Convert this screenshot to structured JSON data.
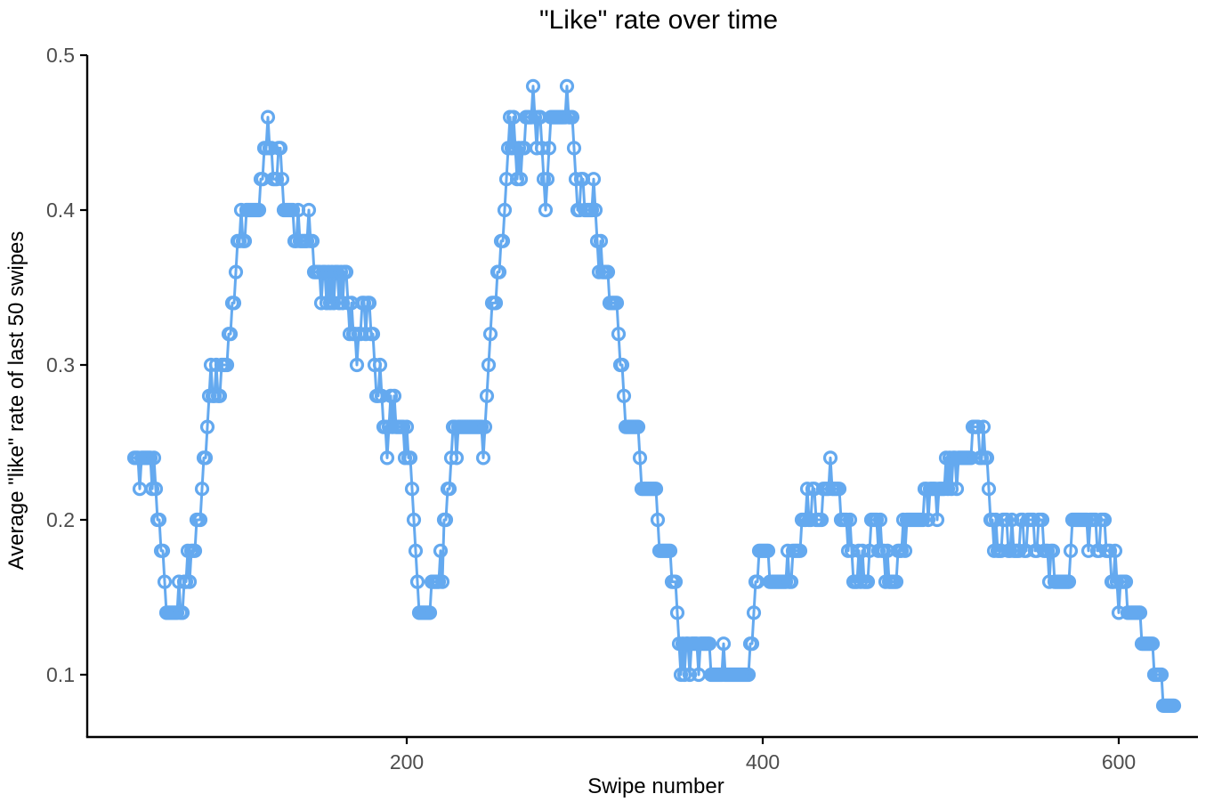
{
  "chart_data": {
    "type": "line",
    "title": "\"Like\" rate over time",
    "xlabel": "Swipe number",
    "ylabel": "Average \"like\" rate of last 50 swipes",
    "legend": "none",
    "grid": false,
    "marker": "open-circle",
    "xlim": [
      20,
      644
    ],
    "ylim": [
      0.06,
      0.5
    ],
    "x_ticks": [
      200,
      400,
      600
    ],
    "y_ticks": [
      0.1,
      0.2,
      0.3,
      0.4,
      0.5
    ],
    "colors": {
      "series": "#64A9EF",
      "axis": "#000000",
      "tick_label": "#4D4D4D",
      "background": "#FFFFFF"
    },
    "x_start": 47,
    "x_step": 1,
    "values": [
      0.24,
      0.24,
      0.24,
      0.22,
      0.24,
      0.24,
      0.24,
      0.24,
      0.24,
      0.24,
      0.22,
      0.24,
      0.22,
      0.2,
      0.2,
      0.18,
      0.18,
      0.16,
      0.14,
      0.14,
      0.14,
      0.14,
      0.14,
      0.14,
      0.14,
      0.16,
      0.14,
      0.14,
      0.16,
      0.16,
      0.18,
      0.16,
      0.18,
      0.18,
      0.18,
      0.2,
      0.2,
      0.2,
      0.22,
      0.24,
      0.24,
      0.26,
      0.28,
      0.3,
      0.28,
      0.28,
      0.3,
      0.28,
      0.28,
      0.3,
      0.3,
      0.3,
      0.3,
      0.32,
      0.32,
      0.34,
      0.34,
      0.36,
      0.38,
      0.38,
      0.4,
      0.38,
      0.38,
      0.4,
      0.4,
      0.4,
      0.4,
      0.4,
      0.4,
      0.4,
      0.4,
      0.42,
      0.42,
      0.44,
      0.44,
      0.46,
      0.44,
      0.44,
      0.42,
      0.42,
      0.42,
      0.44,
      0.44,
      0.42,
      0.4,
      0.4,
      0.4,
      0.4,
      0.4,
      0.4,
      0.38,
      0.38,
      0.4,
      0.38,
      0.38,
      0.38,
      0.38,
      0.38,
      0.4,
      0.38,
      0.38,
      0.36,
      0.36,
      0.36,
      0.36,
      0.34,
      0.36,
      0.36,
      0.34,
      0.36,
      0.34,
      0.36,
      0.34,
      0.36,
      0.36,
      0.34,
      0.36,
      0.34,
      0.36,
      0.36,
      0.34,
      0.32,
      0.34,
      0.32,
      0.32,
      0.3,
      0.32,
      0.32,
      0.34,
      0.34,
      0.32,
      0.34,
      0.34,
      0.32,
      0.32,
      0.3,
      0.28,
      0.28,
      0.3,
      0.28,
      0.26,
      0.26,
      0.24,
      0.26,
      0.28,
      0.26,
      0.28,
      0.26,
      0.26,
      0.26,
      0.26,
      0.26,
      0.24,
      0.26,
      0.24,
      0.24,
      0.22,
      0.2,
      0.18,
      0.16,
      0.14,
      0.14,
      0.14,
      0.14,
      0.14,
      0.14,
      0.14,
      0.16,
      0.16,
      0.16,
      0.16,
      0.16,
      0.18,
      0.16,
      0.2,
      0.2,
      0.22,
      0.22,
      0.24,
      0.26,
      0.26,
      0.24,
      0.26,
      0.26,
      0.26,
      0.26,
      0.26,
      0.26,
      0.26,
      0.26,
      0.26,
      0.26,
      0.26,
      0.26,
      0.26,
      0.26,
      0.24,
      0.26,
      0.28,
      0.3,
      0.32,
      0.34,
      0.34,
      0.34,
      0.36,
      0.36,
      0.38,
      0.38,
      0.4,
      0.42,
      0.44,
      0.46,
      0.44,
      0.46,
      0.44,
      0.42,
      0.44,
      0.42,
      0.44,
      0.44,
      0.46,
      0.46,
      0.46,
      0.46,
      0.48,
      0.46,
      0.44,
      0.46,
      0.46,
      0.44,
      0.42,
      0.4,
      0.42,
      0.44,
      0.46,
      0.46,
      0.46,
      0.46,
      0.46,
      0.46,
      0.46,
      0.46,
      0.46,
      0.48,
      0.46,
      0.46,
      0.46,
      0.44,
      0.42,
      0.4,
      0.4,
      0.42,
      0.42,
      0.4,
      0.4,
      0.4,
      0.4,
      0.4,
      0.42,
      0.4,
      0.38,
      0.36,
      0.38,
      0.36,
      0.36,
      0.36,
      0.36,
      0.34,
      0.34,
      0.34,
      0.34,
      0.34,
      0.32,
      0.3,
      0.3,
      0.28,
      0.26,
      0.26,
      0.26,
      0.26,
      0.26,
      0.26,
      0.26,
      0.26,
      0.24,
      0.22,
      0.22,
      0.22,
      0.22,
      0.22,
      0.22,
      0.22,
      0.22,
      0.22,
      0.2,
      0.18,
      0.18,
      0.18,
      0.18,
      0.18,
      0.18,
      0.18,
      0.16,
      0.16,
      0.16,
      0.14,
      0.12,
      0.1,
      0.12,
      0.1,
      0.12,
      0.12,
      0.1,
      0.12,
      0.12,
      0.12,
      0.12,
      0.1,
      0.12,
      0.12,
      0.12,
      0.12,
      0.12,
      0.12,
      0.1,
      0.1,
      0.1,
      0.1,
      0.1,
      0.1,
      0.1,
      0.12,
      0.1,
      0.1,
      0.1,
      0.1,
      0.1,
      0.1,
      0.1,
      0.1,
      0.1,
      0.1,
      0.1,
      0.1,
      0.1,
      0.1,
      0.12,
      0.12,
      0.14,
      0.16,
      0.16,
      0.18,
      0.18,
      0.18,
      0.18,
      0.18,
      0.18,
      0.16,
      0.16,
      0.16,
      0.16,
      0.16,
      0.16,
      0.16,
      0.16,
      0.16,
      0.16,
      0.18,
      0.16,
      0.16,
      0.18,
      0.18,
      0.18,
      0.18,
      0.18,
      0.2,
      0.2,
      0.2,
      0.22,
      0.2,
      0.2,
      0.22,
      0.22,
      0.2,
      0.2,
      0.2,
      0.2,
      0.22,
      0.22,
      0.22,
      0.22,
      0.24,
      0.22,
      0.22,
      0.22,
      0.22,
      0.22,
      0.2,
      0.2,
      0.2,
      0.2,
      0.18,
      0.2,
      0.18,
      0.16,
      0.16,
      0.16,
      0.18,
      0.16,
      0.18,
      0.16,
      0.16,
      0.16,
      0.18,
      0.2,
      0.2,
      0.2,
      0.2,
      0.18,
      0.2,
      0.18,
      0.18,
      0.16,
      0.18,
      0.16,
      0.16,
      0.16,
      0.16,
      0.16,
      0.18,
      0.18,
      0.18,
      0.2,
      0.18,
      0.2,
      0.2,
      0.2,
      0.2,
      0.2,
      0.2,
      0.2,
      0.2,
      0.2,
      0.2,
      0.22,
      0.22,
      0.2,
      0.22,
      0.22,
      0.22,
      0.22,
      0.2,
      0.22,
      0.22,
      0.22,
      0.22,
      0.24,
      0.22,
      0.24,
      0.22,
      0.24,
      0.24,
      0.22,
      0.24,
      0.24,
      0.24,
      0.24,
      0.24,
      0.24,
      0.24,
      0.24,
      0.26,
      0.26,
      0.26,
      0.26,
      0.24,
      0.24,
      0.26,
      0.24,
      0.24,
      0.22,
      0.2,
      0.2,
      0.18,
      0.2,
      0.18,
      0.18,
      0.18,
      0.2,
      0.2,
      0.2,
      0.18,
      0.18,
      0.2,
      0.18,
      0.18,
      0.18,
      0.18,
      0.2,
      0.2,
      0.18,
      0.18,
      0.2,
      0.2,
      0.2,
      0.2,
      0.18,
      0.18,
      0.2,
      0.2,
      0.2,
      0.18,
      0.18,
      0.18,
      0.16,
      0.18,
      0.18,
      0.16,
      0.16,
      0.16,
      0.16,
      0.16,
      0.16,
      0.16,
      0.16,
      0.16,
      0.18,
      0.2,
      0.2,
      0.2,
      0.2,
      0.2,
      0.2,
      0.2,
      0.2,
      0.2,
      0.18,
      0.2,
      0.2,
      0.2,
      0.2,
      0.18,
      0.18,
      0.2,
      0.2,
      0.2,
      0.18,
      0.18,
      0.18,
      0.16,
      0.16,
      0.18,
      0.16,
      0.14,
      0.16,
      0.16,
      0.16,
      0.16,
      0.14,
      0.14,
      0.14,
      0.14,
      0.14,
      0.14,
      0.14,
      0.14,
      0.12,
      0.12,
      0.12,
      0.12,
      0.12,
      0.12,
      0.12,
      0.1,
      0.1,
      0.1,
      0.1,
      0.1,
      0.08,
      0.08,
      0.08,
      0.08,
      0.08,
      0.08,
      0.08
    ]
  }
}
